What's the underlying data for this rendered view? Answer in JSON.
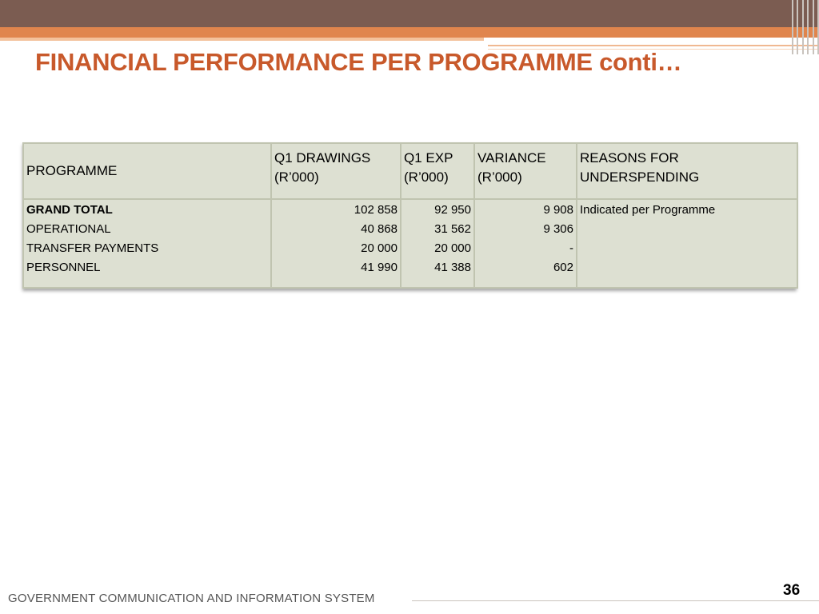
{
  "slide": {
    "title": "FINANCIAL PERFORMANCE PER PROGRAMME conti…",
    "footer": "GOVERNMENT COMMUNICATION AND INFORMATION SYSTEM",
    "page_number": "36"
  },
  "table": {
    "headers": {
      "programme": "PROGRAMME",
      "drawings": [
        "Q1 DRAWINGS",
        "(R’000)"
      ],
      "expenditure": [
        "Q1 EXP",
        "(R’000)"
      ],
      "variance": [
        "VARIANCE",
        "(R’000)"
      ],
      "reasons": [
        "REASONS FOR",
        "UNDERSPENDING"
      ]
    },
    "rows": [
      {
        "programme": "GRAND TOTAL",
        "drawings": "102 858",
        "expenditure": "92 950",
        "variance": "9 908",
        "reasons": "Indicated per Programme"
      },
      {
        "programme": "OPERATIONAL",
        "drawings": "40 868",
        "expenditure": "31 562",
        "variance": "9 306",
        "reasons": ""
      },
      {
        "programme": "TRANSFER PAYMENTS",
        "drawings": "20 000",
        "expenditure": "20 000",
        "variance": "-",
        "reasons": ""
      },
      {
        "programme": "PERSONNEL",
        "drawings": "41 990",
        "expenditure": "41 388",
        "variance": "602",
        "reasons": ""
      }
    ]
  },
  "colors": {
    "title": "#c8592b",
    "top_band": "#7b5c51",
    "accent_band": "#e0854d",
    "table_fill": "#dde0d2",
    "table_border": "#c0c4b0"
  }
}
